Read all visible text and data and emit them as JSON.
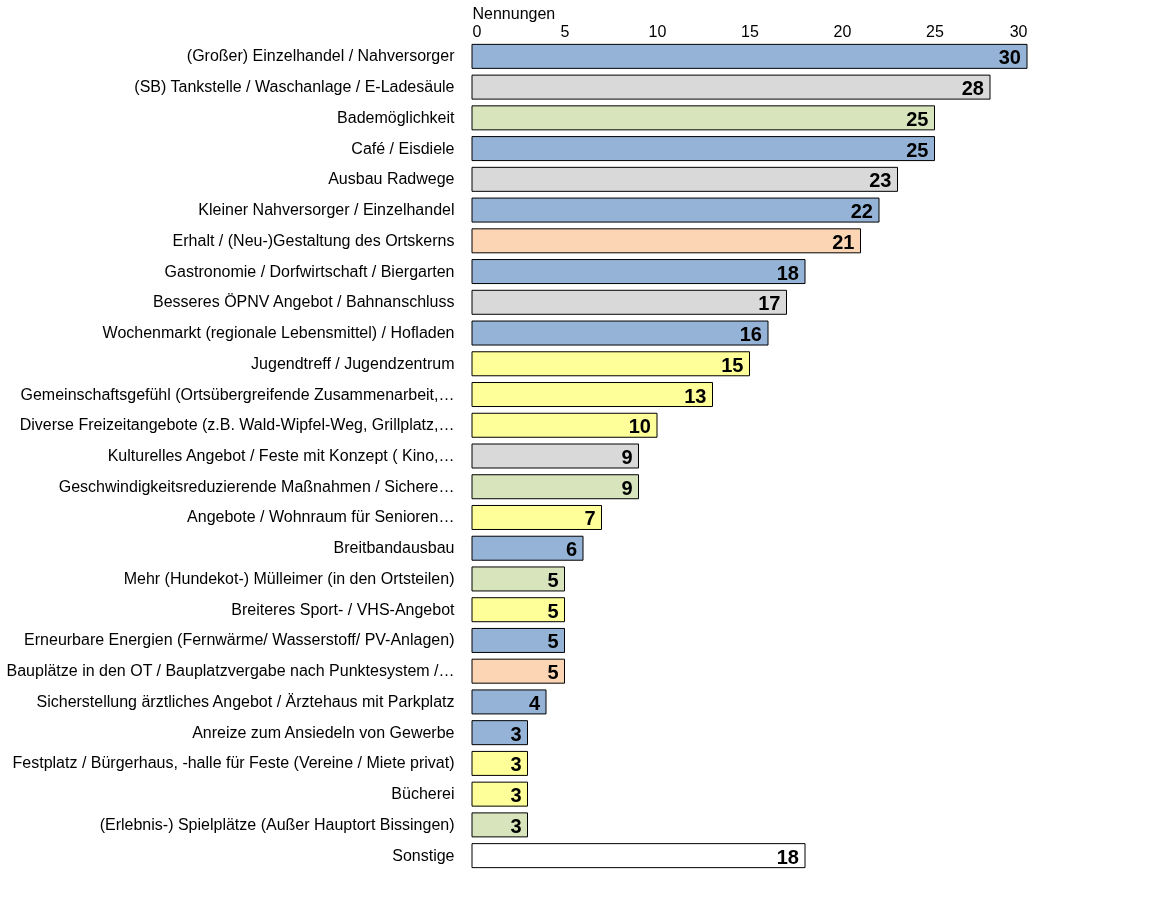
{
  "chart_data": {
    "type": "bar",
    "orientation": "horizontal",
    "xlabel": "Nennungen",
    "categories": [
      "(Großer) Einzelhandel / Nahversorger",
      "(SB) Tankstelle / Waschanlage / E-Ladesäule",
      "Bademöglichkeit",
      "Café / Eisdiele",
      "Ausbau Radwege",
      "Kleiner Nahversorger / Einzelhandel",
      "Erhalt / (Neu-)Gestaltung des Ortskerns",
      "Gastronomie / Dorfwirtschaft / Biergarten",
      "Besseres ÖPNV Angebot / Bahnanschluss",
      "Wochenmarkt (regionale Lebensmittel) / Hofladen",
      "Jugendtreff / Jugendzentrum",
      "Gemeinschaftsgefühl (Ortsübergreifende Zusammenarbeit,…",
      "Diverse Freizeitangebote (z.B. Wald-Wipfel-Weg, Grillplatz,…",
      "Kulturelles Angebot / Feste mit Konzept ( Kino,…",
      "Geschwindigkeitsreduzierende Maßnahmen / Sichere…",
      "Angebote / Wohnraum für Senioren…",
      "Breitbandausbau",
      "Mehr (Hundekot-) Mülleimer (in den Ortsteilen)",
      "Breiteres Sport- / VHS-Angebot",
      "Erneurbare Energien (Fernwärme/ Wasserstoff/ PV-Anlagen)",
      "Bauplätze in den OT / Bauplatzvergabe nach Punktesystem /…",
      "Sicherstellung ärztliches Angebot / Ärztehaus mit Parkplatz",
      "Anreize zum Ansiedeln von Gewerbe",
      "Festplatz / Bürgerhaus, -halle für Feste (Vereine / Miete privat)",
      "Bücherei",
      "(Erlebnis-) Spielplätze (Außer Hauptort Bissingen)",
      "Sonstige"
    ],
    "values": [
      30,
      28,
      25,
      25,
      23,
      22,
      21,
      18,
      17,
      16,
      15,
      13,
      10,
      9,
      9,
      7,
      6,
      5,
      5,
      5,
      5,
      4,
      3,
      3,
      3,
      3,
      18
    ],
    "colors": [
      "#95b3d7",
      "#d9d9d9",
      "#d7e4bc",
      "#95b3d7",
      "#d9d9d9",
      "#95b3d7",
      "#fcd5b4",
      "#95b3d7",
      "#d9d9d9",
      "#95b3d7",
      "#ffff99",
      "#ffff99",
      "#ffff99",
      "#d9d9d9",
      "#d7e4bc",
      "#ffff99",
      "#95b3d7",
      "#d7e4bc",
      "#ffff99",
      "#95b3d7",
      "#fcd5b4",
      "#95b3d7",
      "#95b3d7",
      "#ffff99",
      "#ffff99",
      "#d7e4bc",
      "#ffffff"
    ],
    "xlim": [
      0,
      30
    ],
    "xticks": [
      0,
      5,
      10,
      15,
      20,
      25,
      30
    ],
    "data_labels": true,
    "grid": false
  }
}
